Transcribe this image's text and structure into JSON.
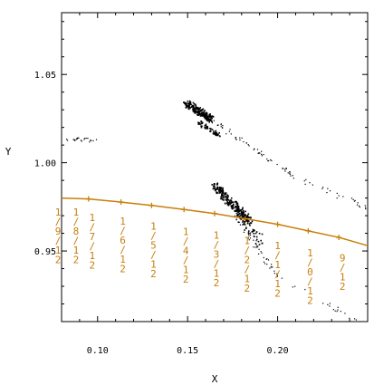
{
  "chart_data": {
    "type": "scatter",
    "title": "",
    "xlabel": "X",
    "ylabel": "Y",
    "xlim": [
      0.08,
      0.25
    ],
    "ylim": [
      0.91,
      1.085
    ],
    "xticks": [
      0.1,
      0.15,
      0.2
    ],
    "xtick_labels": [
      "0.10",
      "0.15",
      "0.20"
    ],
    "yticks": [
      0.95,
      1.0,
      1.05
    ],
    "ytick_labels": [
      "0.95",
      "1.00",
      "1.05"
    ],
    "grid": false,
    "legend": "none",
    "colors": {
      "curve": "#c87f0a",
      "points": "#000000",
      "axes": "#000000"
    },
    "curve": {
      "x": [
        0.08,
        0.095,
        0.113,
        0.13,
        0.148,
        0.165,
        0.182,
        0.2,
        0.217,
        0.234,
        0.25
      ],
      "y": [
        0.98,
        0.9795,
        0.9777,
        0.9758,
        0.9735,
        0.9712,
        0.9683,
        0.9651,
        0.9614,
        0.9577,
        0.953
      ]
    },
    "curve_markers": {
      "x": [
        0.095,
        0.113,
        0.13,
        0.148,
        0.165,
        0.182,
        0.2,
        0.217,
        0.234
      ],
      "y": [
        0.9795,
        0.9777,
        0.9758,
        0.9735,
        0.9712,
        0.9683,
        0.9651,
        0.9614,
        0.9577
      ]
    },
    "fraction_labels": [
      {
        "top": "19",
        "bottom": "12",
        "x": 0.078,
        "y": 0.97
      },
      {
        "top": "18",
        "bottom": "12",
        "x": 0.088,
        "y": 0.97
      },
      {
        "top": "17",
        "bottom": "12",
        "x": 0.097,
        "y": 0.967
      },
      {
        "top": "16",
        "bottom": "12",
        "x": 0.114,
        "y": 0.965
      },
      {
        "top": "15",
        "bottom": "12",
        "x": 0.131,
        "y": 0.962
      },
      {
        "top": "14",
        "bottom": "12",
        "x": 0.149,
        "y": 0.959
      },
      {
        "top": "13",
        "bottom": "12",
        "x": 0.166,
        "y": 0.957
      },
      {
        "top": "12",
        "bottom": "12",
        "x": 0.183,
        "y": 0.954
      },
      {
        "top": "11",
        "bottom": "12",
        "x": 0.2,
        "y": 0.951
      },
      {
        "top": "10",
        "bottom": "12",
        "x": 0.218,
        "y": 0.947
      },
      {
        "top": "9",
        "bottom": "12",
        "x": 0.236,
        "y": 0.944
      }
    ],
    "scatter_clusters": [
      {
        "x0": 0.082,
        "y0": 1.0135,
        "x1": 0.1,
        "y1": 1.013,
        "n": 22,
        "spread": 0.0012
      },
      {
        "x0": 0.155,
        "y0": 1.03,
        "x1": 0.21,
        "y1": 0.9915,
        "n": 70,
        "spread": 0.0012
      },
      {
        "x0": 0.21,
        "y0": 0.9915,
        "x1": 0.25,
        "y1": 0.975,
        "n": 25,
        "spread": 0.0015
      },
      {
        "x0": 0.165,
        "y0": 0.9875,
        "x1": 0.2,
        "y1": 0.935,
        "n": 60,
        "spread": 0.0015
      },
      {
        "x0": 0.2,
        "y0": 0.935,
        "x1": 0.245,
        "y1": 0.91,
        "n": 20,
        "spread": 0.0015
      }
    ],
    "dense_clusters": [
      {
        "x0": 0.149,
        "y0": 1.034,
        "x1": 0.163,
        "y1": 1.025,
        "n": 220,
        "spread": 0.0018
      },
      {
        "x0": 0.156,
        "y0": 1.023,
        "x1": 0.167,
        "y1": 1.016,
        "n": 60,
        "spread": 0.0012
      },
      {
        "x0": 0.164,
        "y0": 0.988,
        "x1": 0.184,
        "y1": 0.967,
        "n": 260,
        "spread": 0.002
      },
      {
        "x0": 0.18,
        "y0": 0.968,
        "x1": 0.19,
        "y1": 0.955,
        "n": 40,
        "spread": 0.003
      }
    ]
  }
}
